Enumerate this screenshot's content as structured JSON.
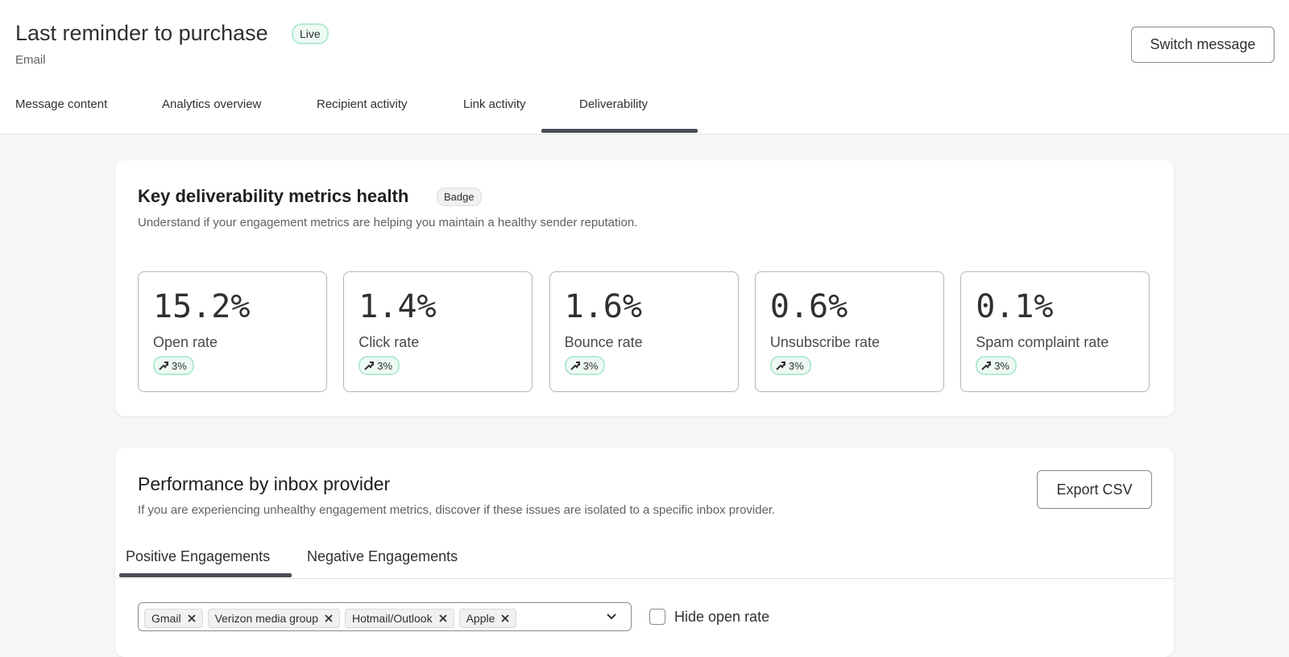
{
  "header": {
    "title": "Last reminder to purchase",
    "status": "Live",
    "channel": "Email",
    "action": "Switch message"
  },
  "tabs": [
    "Message content",
    "Analytics overview",
    "Recipient activity",
    "Link activity",
    "Deliverability"
  ],
  "metrics_card": {
    "title": "Key deliverability metrics health",
    "badge": "Badge",
    "description": "Understand if your engagement metrics are helping you maintain a healthy sender reputation.",
    "metrics": [
      {
        "value": "15.2%",
        "label": "Open rate",
        "change": "3%"
      },
      {
        "value": "1.4%",
        "label": "Click rate",
        "change": "3%"
      },
      {
        "value": "1.6%",
        "label": "Bounce rate",
        "change": "3%"
      },
      {
        "value": "0.6%",
        "label": "Unsubscribe rate",
        "change": "3%"
      },
      {
        "value": "0.1%",
        "label": "Spam complaint rate",
        "change": "3%"
      }
    ]
  },
  "provider_card": {
    "title": "Performance by inbox provider",
    "action": "Export CSV",
    "description": "If you are experiencing unhealthy engagement metrics, discover if these issues are isolated to a specific inbox provider.",
    "tabs": [
      "Positive Engagements",
      "Negative Engagements"
    ],
    "filters": [
      "Gmail",
      "Verizon media group",
      "Hotmail/Outlook",
      "Apple"
    ],
    "checkbox": "Hide open rate"
  }
}
